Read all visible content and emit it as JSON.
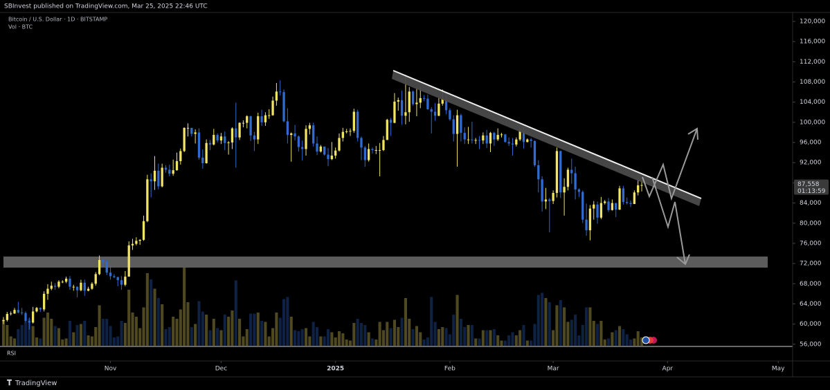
{
  "publisher": "SBInvest published on TradingView.com, Mar 25, 2025 22:46 UTC",
  "footer": "TradingView",
  "chart_data": {
    "type": "candlestick",
    "title": "Bitcoin / U.S. Dollar · 1D · BITSTAMP",
    "subtitle": "Vol · BTC",
    "pane_label": "RSI",
    "up_color": "#f2e463",
    "down_color": "#2f6bd0",
    "ylim": [
      55700,
      124250
    ],
    "yticks": [
      {
        "value": 56000,
        "label": "56,000"
      },
      {
        "value": 60000,
        "label": "60,000"
      },
      {
        "value": 64000,
        "label": "64,000"
      },
      {
        "value": 68000,
        "label": "68,000"
      },
      {
        "value": 72000,
        "label": "72,000"
      },
      {
        "value": 76000,
        "label": "76,000"
      },
      {
        "value": 80000,
        "label": "80,000"
      },
      {
        "value": 84000,
        "label": "84,000"
      },
      {
        "value": 88000,
        "label": "88,000"
      },
      {
        "value": 92000,
        "label": "92,000"
      },
      {
        "value": 96000,
        "label": "96,000"
      },
      {
        "value": 100000,
        "label": "100,000"
      },
      {
        "value": 104000,
        "label": "104,000"
      },
      {
        "value": 108000,
        "label": "108,000"
      },
      {
        "value": 112000,
        "label": "112,000"
      },
      {
        "value": 116000,
        "label": "116,000"
      },
      {
        "value": 120000,
        "label": "120,000"
      }
    ],
    "xlim": [
      -0.94,
      213.9
    ],
    "xticks": [
      {
        "value": 29,
        "label": "Nov"
      },
      {
        "value": 59,
        "label": "Dec"
      },
      {
        "value": 90,
        "label": "2025"
      },
      {
        "value": 121,
        "label": "Feb"
      },
      {
        "value": 149,
        "label": "Mar"
      },
      {
        "value": 180,
        "label": "Apr"
      },
      {
        "value": 210,
        "label": "May"
      }
    ],
    "volume_lim": [
      0,
      10000
    ],
    "last_price": {
      "value": 87558,
      "label": "87,558"
    },
    "countdown": "01:13:59",
    "ohlc": [
      [
        60600,
        61400,
        60000,
        60800
      ],
      [
        60800,
        62400,
        60500,
        62000
      ],
      [
        62000,
        62500,
        61700,
        62100
      ],
      [
        62100,
        63200,
        62000,
        62800
      ],
      [
        62800,
        64400,
        62100,
        62300
      ],
      [
        62300,
        63200,
        61800,
        62200
      ],
      [
        62200,
        62500,
        60300,
        60600
      ],
      [
        60600,
        61300,
        58900,
        60300
      ],
      [
        60300,
        63400,
        60100,
        62500
      ],
      [
        62500,
        63400,
        62300,
        63200
      ],
      [
        63200,
        63300,
        62400,
        62900
      ],
      [
        62900,
        66500,
        62500,
        66000
      ],
      [
        66000,
        67900,
        64800,
        67000
      ],
      [
        67000,
        68400,
        66700,
        67600
      ],
      [
        67600,
        68100,
        66800,
        67400
      ],
      [
        67400,
        68700,
        67100,
        68400
      ],
      [
        68400,
        68700,
        68100,
        68400
      ],
      [
        68400,
        69400,
        68100,
        69000
      ],
      [
        69000,
        69500,
        66800,
        67400
      ],
      [
        67400,
        67800,
        66600,
        67400
      ],
      [
        67400,
        67500,
        65300,
        66700
      ],
      [
        66700,
        68800,
        66500,
        68200
      ],
      [
        68200,
        68800,
        65600,
        66600
      ],
      [
        66600,
        67400,
        66500,
        67000
      ],
      [
        67000,
        68300,
        66800,
        68000
      ],
      [
        68000,
        70300,
        67600,
        69900
      ],
      [
        69900,
        73600,
        69700,
        72700
      ],
      [
        72700,
        72900,
        71400,
        72300
      ],
      [
        72300,
        72700,
        69700,
        70200
      ],
      [
        70200,
        71600,
        68800,
        69500
      ],
      [
        69500,
        69900,
        69100,
        69300
      ],
      [
        69300,
        69400,
        67500,
        68700
      ],
      [
        68700,
        69500,
        66800,
        67800
      ],
      [
        67800,
        70500,
        67500,
        69400
      ],
      [
        69400,
        76400,
        69400,
        75600
      ],
      [
        75600,
        76900,
        74700,
        75900
      ],
      [
        75900,
        77200,
        75600,
        76500
      ],
      [
        76500,
        76800,
        75700,
        76700
      ],
      [
        76700,
        81500,
        76500,
        80400
      ],
      [
        80400,
        89600,
        80200,
        88700
      ],
      [
        88700,
        89900,
        85100,
        88300
      ],
      [
        88300,
        93300,
        86600,
        90400
      ],
      [
        90400,
        91800,
        86700,
        87300
      ],
      [
        87300,
        91800,
        87100,
        91000
      ],
      [
        91000,
        91500,
        90000,
        90600
      ],
      [
        90600,
        91600,
        89300,
        89800
      ],
      [
        89800,
        92600,
        89400,
        90500
      ],
      [
        90500,
        94000,
        90400,
        92300
      ],
      [
        92300,
        94800,
        91600,
        94300
      ],
      [
        94300,
        99000,
        94100,
        98900
      ],
      [
        98900,
        99800,
        97200,
        98900
      ],
      [
        98900,
        98900,
        97200,
        97700
      ],
      [
        97700,
        98600,
        95800,
        98000
      ],
      [
        98000,
        98800,
        92600,
        93000
      ],
      [
        93000,
        94600,
        90800,
        91900
      ],
      [
        91900,
        96600,
        91800,
        95900
      ],
      [
        95900,
        96500,
        94500,
        95600
      ],
      [
        95600,
        98700,
        95400,
        97500
      ],
      [
        97500,
        97800,
        96000,
        96400
      ],
      [
        96400,
        97900,
        95700,
        97200
      ],
      [
        97200,
        98200,
        94500,
        95900
      ],
      [
        95900,
        96300,
        93600,
        96000
      ],
      [
        96000,
        99000,
        94700,
        98800
      ],
      [
        98800,
        103900,
        91000,
        97000
      ],
      [
        97000,
        100000,
        96500,
        99900
      ],
      [
        99900,
        100400,
        99000,
        99900
      ],
      [
        99900,
        101400,
        98800,
        101200
      ],
      [
        101200,
        101300,
        96300,
        97400
      ],
      [
        97400,
        98100,
        94300,
        96600
      ],
      [
        96600,
        101900,
        95700,
        101200
      ],
      [
        101200,
        102500,
        99300,
        100000
      ],
      [
        100000,
        102000,
        99300,
        101400
      ],
      [
        101400,
        102600,
        100700,
        101400
      ],
      [
        101400,
        105100,
        101300,
        104300
      ],
      [
        104300,
        107800,
        103300,
        106100
      ],
      [
        106100,
        108300,
        105300,
        106000
      ],
      [
        106000,
        106500,
        100000,
        100200
      ],
      [
        100200,
        102800,
        95800,
        97500
      ],
      [
        97500,
        98000,
        92200,
        97800
      ],
      [
        97800,
        99500,
        96400,
        97200
      ],
      [
        97200,
        97400,
        94200,
        95100
      ],
      [
        95100,
        96400,
        92400,
        94700
      ],
      [
        94700,
        99400,
        93400,
        98700
      ],
      [
        98700,
        99900,
        97600,
        99400
      ],
      [
        99400,
        99900,
        95200,
        95800
      ],
      [
        95800,
        97200,
        93500,
        94200
      ],
      [
        94200,
        95500,
        94000,
        95200
      ],
      [
        95200,
        95200,
        93400,
        93600
      ],
      [
        93600,
        94900,
        91300,
        92700
      ],
      [
        92700,
        96100,
        92500,
        93400
      ],
      [
        93400,
        95000,
        92800,
        94400
      ],
      [
        94400,
        97800,
        94200,
        96900
      ],
      [
        96900,
        98900,
        96200,
        98100
      ],
      [
        98100,
        98700,
        97800,
        98200
      ],
      [
        98200,
        98800,
        97300,
        98300
      ],
      [
        98300,
        102700,
        97900,
        102100
      ],
      [
        102100,
        102500,
        96200,
        96900
      ],
      [
        96900,
        97200,
        92500,
        95000
      ],
      [
        95000,
        95300,
        91200,
        92500
      ],
      [
        92500,
        95800,
        92200,
        94700
      ],
      [
        94700,
        95000,
        93800,
        94500
      ],
      [
        94500,
        95300,
        93700,
        94500
      ],
      [
        94500,
        95900,
        89300,
        94500
      ],
      [
        94500,
        97300,
        94300,
        96500
      ],
      [
        96500,
        100700,
        96500,
        100500
      ],
      [
        100500,
        100900,
        97300,
        99900
      ],
      [
        99900,
        105800,
        99800,
        104100
      ],
      [
        104100,
        104900,
        102300,
        104400
      ],
      [
        104400,
        106300,
        99500,
        101300
      ],
      [
        101300,
        109400,
        99600,
        102000
      ],
      [
        102000,
        107000,
        100100,
        106100
      ],
      [
        106100,
        106300,
        103300,
        103600
      ],
      [
        103600,
        106800,
        101200,
        103900
      ],
      [
        103900,
        107000,
        102800,
        104800
      ],
      [
        104800,
        105400,
        104200,
        104700
      ],
      [
        104700,
        105500,
        102500,
        102600
      ],
      [
        102600,
        103000,
        97800,
        102100
      ],
      [
        102100,
        103800,
        100300,
        101300
      ],
      [
        101300,
        104800,
        101200,
        103700
      ],
      [
        103700,
        106500,
        103300,
        104700
      ],
      [
        104700,
        106000,
        101600,
        102400
      ],
      [
        102400,
        102800,
        100300,
        100600
      ],
      [
        100600,
        101400,
        96200,
        97700
      ],
      [
        97700,
        102500,
        91200,
        101400
      ],
      [
        101400,
        101700,
        96200,
        97900
      ],
      [
        97900,
        99000,
        95700,
        96600
      ],
      [
        96600,
        99100,
        95700,
        96600
      ],
      [
        96600,
        100100,
        95800,
        96500
      ],
      [
        96500,
        96900,
        95700,
        96500
      ],
      [
        96500,
        97300,
        94700,
        96400
      ],
      [
        96400,
        98000,
        95700,
        97400
      ],
      [
        97400,
        98500,
        94900,
        95800
      ],
      [
        95800,
        98100,
        94100,
        97900
      ],
      [
        97900,
        98100,
        95300,
        96600
      ],
      [
        96600,
        98800,
        96300,
        97500
      ],
      [
        97500,
        97900,
        97000,
        97600
      ],
      [
        97600,
        97700,
        96000,
        96100
      ],
      [
        96100,
        97000,
        95300,
        95800
      ],
      [
        95800,
        96900,
        93400,
        95600
      ],
      [
        95600,
        97000,
        95200,
        96600
      ],
      [
        96600,
        98800,
        96300,
        98300
      ],
      [
        98300,
        99500,
        94800,
        96100
      ],
      [
        96100,
        96800,
        96000,
        96600
      ],
      [
        96600,
        96900,
        95000,
        96300
      ],
      [
        96300,
        96400,
        91200,
        91500
      ],
      [
        91500,
        92500,
        86100,
        88700
      ],
      [
        88700,
        89300,
        82300,
        84300
      ],
      [
        84300,
        87000,
        82800,
        84700
      ],
      [
        84700,
        85000,
        78200,
        84400
      ],
      [
        84400,
        86500,
        83800,
        86000
      ],
      [
        86000,
        95000,
        85100,
        94300
      ],
      [
        94300,
        94400,
        85000,
        86100
      ],
      [
        86100,
        88900,
        81500,
        87200
      ],
      [
        87200,
        91000,
        86500,
        90600
      ],
      [
        90600,
        92800,
        87800,
        89900
      ],
      [
        89900,
        91200,
        84700,
        86700
      ],
      [
        86700,
        86900,
        85200,
        86200
      ],
      [
        86200,
        86500,
        80000,
        80700
      ],
      [
        80700,
        83900,
        77500,
        78600
      ],
      [
        78600,
        83600,
        76600,
        82900
      ],
      [
        82900,
        84400,
        80700,
        83700
      ],
      [
        83700,
        84300,
        79900,
        81100
      ],
      [
        81100,
        85200,
        80800,
        84000
      ],
      [
        84000,
        84600,
        83700,
        84300
      ],
      [
        84300,
        85000,
        82200,
        82600
      ],
      [
        82600,
        84700,
        82500,
        84000
      ],
      [
        84000,
        84000,
        81200,
        82700
      ],
      [
        82700,
        87400,
        82600,
        86900
      ],
      [
        86900,
        87400,
        83700,
        84200
      ],
      [
        84200,
        85100,
        83700,
        84000
      ],
      [
        84000,
        84500,
        83200,
        83800
      ],
      [
        83800,
        86500,
        83800,
        86100
      ],
      [
        86100,
        88800,
        85500,
        87500
      ],
      [
        87500,
        88500,
        86300,
        87558
      ]
    ],
    "volume": [
      2500,
      2000,
      900,
      700,
      1600,
      2000,
      2300,
      2600,
      1900,
      800,
      700,
      2700,
      3200,
      2600,
      1900,
      1700,
      600,
      700,
      2400,
      1300,
      2000,
      2100,
      2400,
      1000,
      900,
      1800,
      3900,
      2600,
      2600,
      1900,
      800,
      900,
      2400,
      2200,
      5400,
      3200,
      2800,
      1700,
      3700,
      7000,
      6400,
      5500,
      4600,
      4000,
      1600,
      1800,
      2800,
      2600,
      3500,
      8000,
      4200,
      1800,
      2100,
      4300,
      3300,
      3000,
      1500,
      2600,
      1700,
      1500,
      3000,
      2800,
      3400,
      6300,
      2600,
      900,
      1600,
      3100,
      3100,
      3200,
      2400,
      2300,
      900,
      1700,
      3200,
      2700,
      4500,
      4700,
      2800,
      1500,
      1400,
      1600,
      1700,
      900,
      2300,
      1800,
      900,
      900,
      1600,
      1300,
      800,
      1400,
      1200,
      600,
      500,
      2200,
      2600,
      2200,
      2000,
      1300,
      700,
      600,
      2300,
      1500,
      2300,
      1700,
      2500,
      1800,
      2700,
      4600,
      2600,
      1600,
      1900,
      1300,
      600,
      800,
      4700,
      2300,
      1600,
      1800,
      1700,
      1100,
      3000,
      4900,
      2600,
      1800,
      2000,
      2000,
      700,
      700,
      1500,
      1500,
      1500,
      1600,
      1000,
      500,
      500,
      1000,
      1300,
      1000,
      1500,
      2000,
      500,
      500,
      2100,
      4900,
      5100,
      4600,
      4200,
      1500,
      3900,
      4400,
      3700,
      2300,
      2500,
      3000,
      1000,
      2000,
      3700,
      3700,
      2400,
      2100,
      2400,
      600,
      700,
      1300,
      1500,
      1900,
      1600,
      1100,
      600,
      700,
      1400,
      800
    ]
  }
}
